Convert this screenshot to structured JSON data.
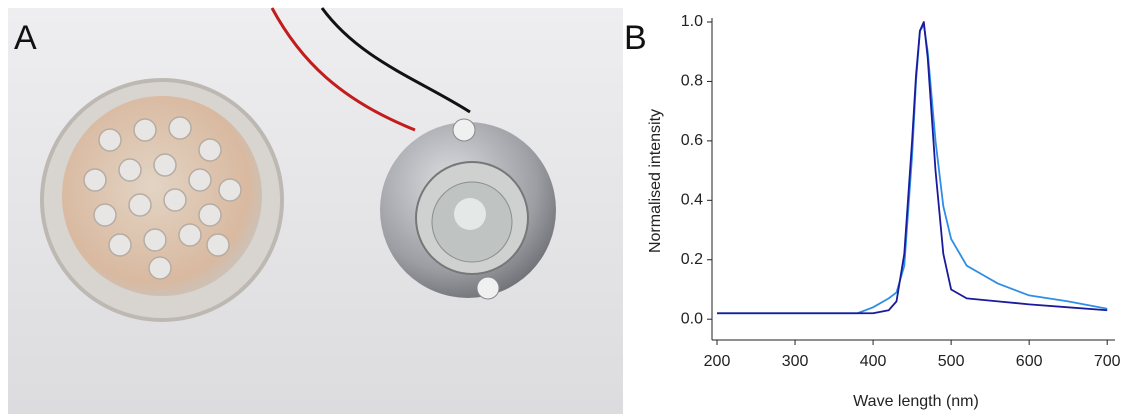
{
  "photo_label": "A",
  "chart_data": {
    "type": "line",
    "panel_label": "B",
    "xlabel": "Wave length (nm)",
    "ylabel": "Normalised intensity",
    "x": [
      200,
      380,
      400,
      420,
      430,
      440,
      450,
      455,
      460,
      465,
      470,
      480,
      490,
      500,
      520,
      540,
      560,
      600,
      650,
      700
    ],
    "series": [
      {
        "color": "#2e8ee6",
        "values": [
          0.02,
          0.02,
          0.04,
          0.07,
          0.09,
          0.18,
          0.55,
          0.8,
          0.97,
          0.99,
          0.9,
          0.6,
          0.38,
          0.27,
          0.18,
          0.15,
          0.12,
          0.08,
          0.06,
          0.035
        ]
      },
      {
        "color": "#1a1a9c",
        "values": [
          0.02,
          0.02,
          0.02,
          0.03,
          0.06,
          0.22,
          0.6,
          0.82,
          0.97,
          1.0,
          0.88,
          0.5,
          0.22,
          0.1,
          0.07,
          0.065,
          0.06,
          0.05,
          0.04,
          0.03
        ]
      }
    ],
    "xlim": [
      200,
      710
    ],
    "ylim": [
      -0.07,
      1.0
    ],
    "xticks": [
      200,
      300,
      400,
      500,
      600,
      700
    ],
    "yticks": [
      {
        "value": 0,
        "label": "0.0"
      },
      0.2,
      0.4,
      0.6,
      0.8,
      {
        "value": 1,
        "label": "1.0"
      }
    ]
  }
}
